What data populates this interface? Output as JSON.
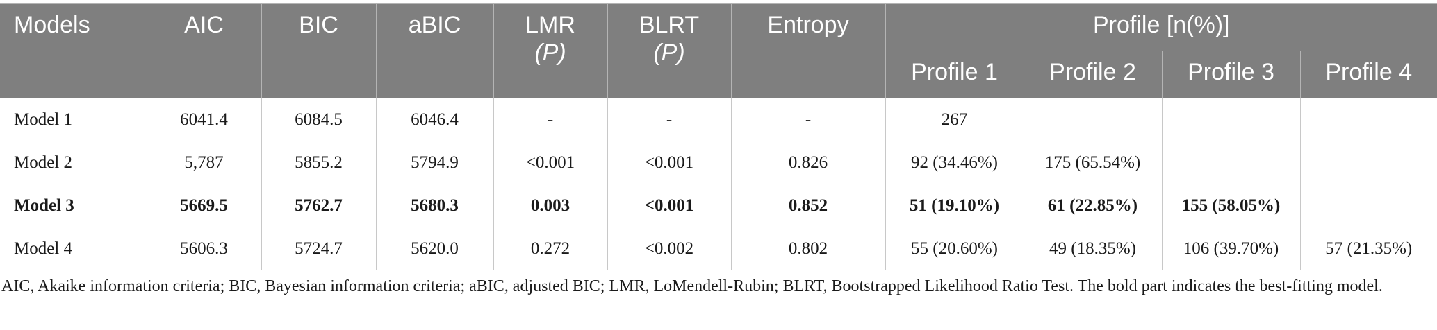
{
  "table": {
    "headers": {
      "models": "Models",
      "aic": "AIC",
      "bic": "BIC",
      "abic": "aBIC",
      "lmr": "LMR",
      "lmr_p": "(P)",
      "blrt": "BLRT",
      "blrt_p": "(P)",
      "entropy": "Entropy",
      "profile_group": "Profile [n(%)]",
      "profiles": [
        "Profile 1",
        "Profile 2",
        "Profile 3",
        "Profile 4"
      ]
    },
    "rows": [
      {
        "model": "Model 1",
        "aic": "6041.4",
        "bic": "6084.5",
        "abic": "6046.4",
        "lmr": "-",
        "blrt": "-",
        "entropy": "-",
        "p1": "267",
        "p2": "",
        "p3": "",
        "p4": "",
        "bold": false
      },
      {
        "model": "Model 2",
        "aic": "5,787",
        "bic": "5855.2",
        "abic": "5794.9",
        "lmr": "<0.001",
        "blrt": "<0.001",
        "entropy": "0.826",
        "p1": "92 (34.46%)",
        "p2": "175 (65.54%)",
        "p3": "",
        "p4": "",
        "bold": false
      },
      {
        "model": "Model 3",
        "aic": "5669.5",
        "bic": "5762.7",
        "abic": "5680.3",
        "lmr": "0.003",
        "blrt": "<0.001",
        "entropy": "0.852",
        "p1": "51 (19.10%)",
        "p2": "61 (22.85%)",
        "p3": "155 (58.05%)",
        "p4": "",
        "bold": true
      },
      {
        "model": "Model 4",
        "aic": "5606.3",
        "bic": "5724.7",
        "abic": "5620.0",
        "lmr": "0.272",
        "blrt": "<0.002",
        "entropy": "0.802",
        "p1": "55 (20.60%)",
        "p2": "49 (18.35%)",
        "p3": "106 (39.70%)",
        "p4": "57 (21.35%)",
        "bold": false
      }
    ]
  },
  "footnote": "AIC, Akaike information criteria; BIC, Bayesian information criteria; aBIC, adjusted BIC; LMR, LoMendell-Rubin; BLRT, Bootstrapped Likelihood Ratio Test. The bold part indicates the best-fitting model."
}
